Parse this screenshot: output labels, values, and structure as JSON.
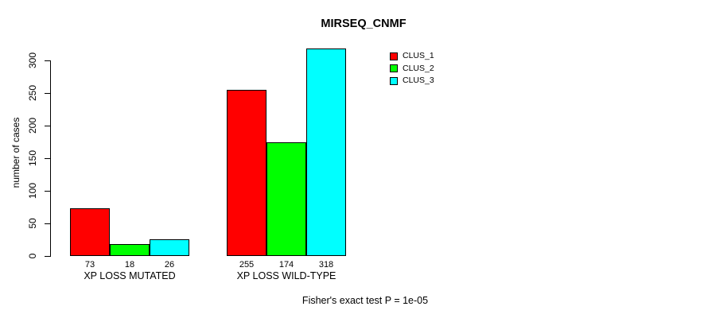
{
  "chart_data": {
    "type": "bar",
    "title": "MIRSEQ_CNMF",
    "ylabel": "number of cases",
    "xlabel": "",
    "categories": [
      "XP LOSS MUTATED",
      "XP LOSS WILD-TYPE"
    ],
    "series": [
      {
        "name": "CLUS_1",
        "color": "#ff0000",
        "values": [
          73,
          255
        ]
      },
      {
        "name": "CLUS_2",
        "color": "#00ff00",
        "values": [
          18,
          174
        ]
      },
      {
        "name": "CLUS_3",
        "color": "#00ffff",
        "values": [
          26,
          318
        ]
      }
    ],
    "value_labels": [
      [
        "73",
        "18",
        "26"
      ],
      [
        "255",
        "174",
        "318"
      ]
    ],
    "yticks": [
      0,
      50,
      100,
      150,
      200,
      250,
      300
    ],
    "ylim": [
      0,
      300
    ],
    "grid": false,
    "legend_position": "topright-outside",
    "annotation": "Fisher's exact test P = 1e-05",
    "axis_color": "#000000",
    "background_color": "#ffffff"
  }
}
